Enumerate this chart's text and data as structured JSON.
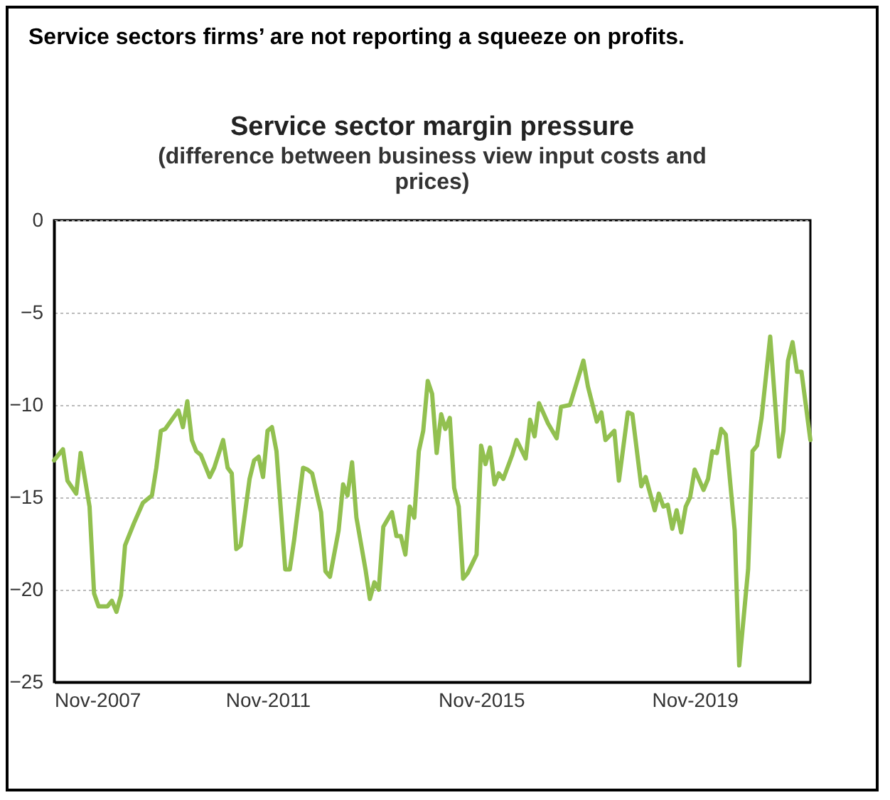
{
  "chart_data": {
    "type": "line",
    "title": "Service sector margin pressure",
    "subtitle": "(difference between business view input costs  and prices)",
    "annotations": [
      "Service sectors firms’ are not reporting a squeeze on profits."
    ],
    "x": [
      "2007-11",
      "2008-01",
      "2008-02",
      "2008-04",
      "2008-05",
      "2008-07",
      "2008-08",
      "2008-09",
      "2008-11",
      "2008-12",
      "2009-01",
      "2009-02",
      "2009-03",
      "2009-05",
      "2009-07",
      "2009-09",
      "2009-10",
      "2009-11",
      "2009-12",
      "2010-03",
      "2010-04",
      "2010-05",
      "2010-06",
      "2010-07",
      "2010-08",
      "2010-10",
      "2010-11",
      "2011-01",
      "2011-02",
      "2011-03",
      "2011-04",
      "2011-05",
      "2011-07",
      "2011-08",
      "2011-09",
      "2011-10",
      "2011-11",
      "2011-12",
      "2012-01",
      "2012-03",
      "2012-04",
      "2012-05",
      "2012-07",
      "2012-08",
      "2012-09",
      "2012-11",
      "2012-12",
      "2013-01",
      "2013-03",
      "2013-04",
      "2013-05",
      "2013-06",
      "2013-07",
      "2013-09",
      "2013-10",
      "2013-11",
      "2013-12",
      "2014-01",
      "2014-03",
      "2014-04",
      "2014-05",
      "2014-06",
      "2014-07",
      "2014-08",
      "2014-09",
      "2014-10",
      "2014-11",
      "2014-12",
      "2015-01",
      "2015-02",
      "2015-03",
      "2015-04",
      "2015-05",
      "2015-06",
      "2015-07",
      "2015-08",
      "2015-10",
      "2015-11",
      "2015-12",
      "2016-01",
      "2016-02",
      "2016-03",
      "2016-04",
      "2016-06",
      "2016-07",
      "2016-09",
      "2016-10",
      "2016-11",
      "2016-12",
      "2017-02",
      "2017-04",
      "2017-05",
      "2017-07",
      "2017-10",
      "2017-11",
      "2018-01",
      "2018-02",
      "2018-03",
      "2018-05",
      "2018-06",
      "2018-08",
      "2018-09",
      "2018-11",
      "2018-12",
      "2019-02",
      "2019-03",
      "2019-04",
      "2019-05",
      "2019-06",
      "2019-07",
      "2019-08",
      "2019-09",
      "2019-10",
      "2019-11",
      "2020-01",
      "2020-02",
      "2020-03",
      "2020-04",
      "2020-05",
      "2020-06",
      "2020-08",
      "2020-09",
      "2020-11",
      "2020-12",
      "2021-01",
      "2021-02",
      "2021-04",
      "2021-06",
      "2021-07",
      "2021-08",
      "2021-09",
      "2021-10",
      "2021-11",
      "2022-01"
    ],
    "series": [
      {
        "color": "#92c050",
        "values": [
          -13.0,
          -12.4,
          -14.1,
          -14.8,
          -12.6,
          -15.5,
          -20.2,
          -20.9,
          -20.9,
          -20.6,
          -21.2,
          -20.3,
          -17.6,
          -16.4,
          -15.3,
          -14.9,
          -13.4,
          -11.4,
          -11.3,
          -10.3,
          -11.2,
          -9.8,
          -11.9,
          -12.5,
          -12.7,
          -13.9,
          -13.4,
          -11.9,
          -13.4,
          -13.7,
          -17.8,
          -17.6,
          -14.0,
          -13.0,
          -12.8,
          -13.9,
          -11.4,
          -11.2,
          -12.5,
          -18.9,
          -18.9,
          -17.3,
          -13.4,
          -13.5,
          -13.7,
          -15.8,
          -19.0,
          -19.3,
          -16.8,
          -14.3,
          -14.9,
          -13.1,
          -16.1,
          -18.9,
          -20.5,
          -19.6,
          -20.0,
          -16.6,
          -15.8,
          -17.1,
          -17.1,
          -18.1,
          -15.5,
          -16.1,
          -12.5,
          -11.4,
          -8.7,
          -9.4,
          -12.6,
          -10.5,
          -11.3,
          -10.7,
          -14.5,
          -15.5,
          -19.4,
          -19.1,
          -18.1,
          -12.2,
          -13.2,
          -12.3,
          -14.3,
          -13.7,
          -14.0,
          -12.7,
          -11.9,
          -12.9,
          -10.8,
          -11.7,
          -9.9,
          -11.0,
          -11.8,
          -10.1,
          -10.0,
          -7.6,
          -9.0,
          -10.9,
          -10.4,
          -11.9,
          -11.4,
          -14.1,
          -10.4,
          -10.5,
          -14.4,
          -13.9,
          -15.7,
          -14.8,
          -15.5,
          -15.4,
          -16.7,
          -15.7,
          -16.9,
          -15.5,
          -15.0,
          -13.5,
          -14.6,
          -14.0,
          -12.5,
          -12.6,
          -11.3,
          -11.6,
          -16.8,
          -24.1,
          -18.9,
          -12.5,
          -12.2,
          -10.7,
          -6.3,
          -12.8,
          -11.4,
          -7.6,
          -6.6,
          -8.2,
          -8.2,
          -11.9
        ]
      }
    ],
    "xlim": [
      "2007-11",
      "2022-01"
    ],
    "xticks": [
      {
        "value": "2007-11",
        "label": "Nov-2007"
      },
      {
        "value": "2011-11",
        "label": "Nov-2011"
      },
      {
        "value": "2015-11",
        "label": "Nov-2015"
      },
      {
        "value": "2019-11",
        "label": "Nov-2019"
      }
    ],
    "ylim": [
      -25,
      0
    ],
    "yticks": [
      -25,
      -20,
      -15,
      -10,
      -5,
      0
    ],
    "grid": "y",
    "marker": "none",
    "line_style": "solid"
  }
}
